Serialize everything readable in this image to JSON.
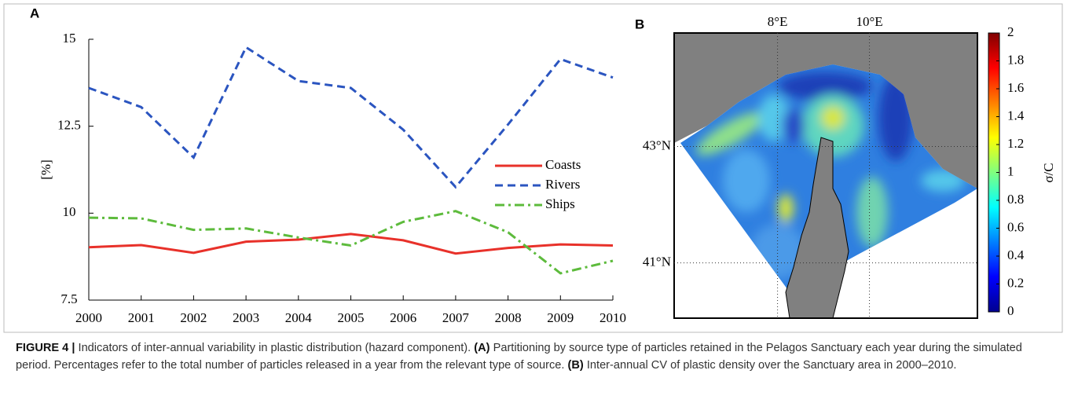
{
  "chart_data": [
    {
      "type": "line",
      "label": "A",
      "ylabel": "[%]",
      "x": [
        2000,
        2001,
        2002,
        2003,
        2004,
        2005,
        2006,
        2007,
        2008,
        2009,
        2010
      ],
      "xlim": [
        2000,
        2010
      ],
      "xticks": [
        2000,
        2001,
        2002,
        2003,
        2004,
        2005,
        2006,
        2007,
        2008,
        2009,
        2010
      ],
      "ylim": [
        7.5,
        15
      ],
      "yticks": [
        7.5,
        10,
        12.5,
        15
      ],
      "legend": "center right",
      "series": [
        {
          "name": "Coasts",
          "color": "#e8312a",
          "linestyle": "solid",
          "values": [
            9.02,
            9.08,
            8.86,
            9.18,
            9.24,
            9.4,
            9.22,
            8.84,
            9.0,
            9.1,
            9.07
          ]
        },
        {
          "name": "Rivers",
          "color": "#2b55c0",
          "linestyle": "dashed",
          "values": [
            13.6,
            13.05,
            11.6,
            14.77,
            13.8,
            13.6,
            12.4,
            10.75,
            12.55,
            14.43,
            13.9
          ]
        },
        {
          "name": "Ships",
          "color": "#5dbb3c",
          "linestyle": "dashdot",
          "values": [
            9.87,
            9.85,
            9.52,
            9.56,
            9.3,
            9.07,
            9.75,
            10.06,
            9.45,
            8.27,
            8.63
          ]
        }
      ]
    },
    {
      "type": "map",
      "label": "B",
      "xlim": [
        5.75,
        12.35
      ],
      "xticks": [
        {
          "value": 8,
          "label": "8°E"
        },
        {
          "value": 10,
          "label": "10°E"
        }
      ],
      "ylim": [
        40.05,
        44.95
      ],
      "yticks": [
        {
          "value": 43,
          "label": "43°N"
        },
        {
          "value": 41,
          "label": "41°N"
        }
      ],
      "colorbar": {
        "label": "σ/C",
        "colormap": "jet",
        "lim": [
          0,
          2
        ],
        "ticks": [
          0,
          0.2,
          0.4,
          0.6,
          0.8,
          1,
          1.2,
          1.4,
          1.6,
          1.8,
          2
        ]
      }
    }
  ],
  "caption": {
    "figure": "FIGURE 4 |",
    "title": "Indicators of inter-annual variability in plastic distribution (hazard component).",
    "a_label": "(A)",
    "a_text": "Partitioning by source type of particles retained in the Pelagos Sanctuary each year during the simulated period. Percentages refer to the total number of particles released in a year from the relevant type of source.",
    "b_label": "(B)",
    "b_text": "Inter-annual CV of plastic density over the Sanctuary area in 2000–2010."
  }
}
